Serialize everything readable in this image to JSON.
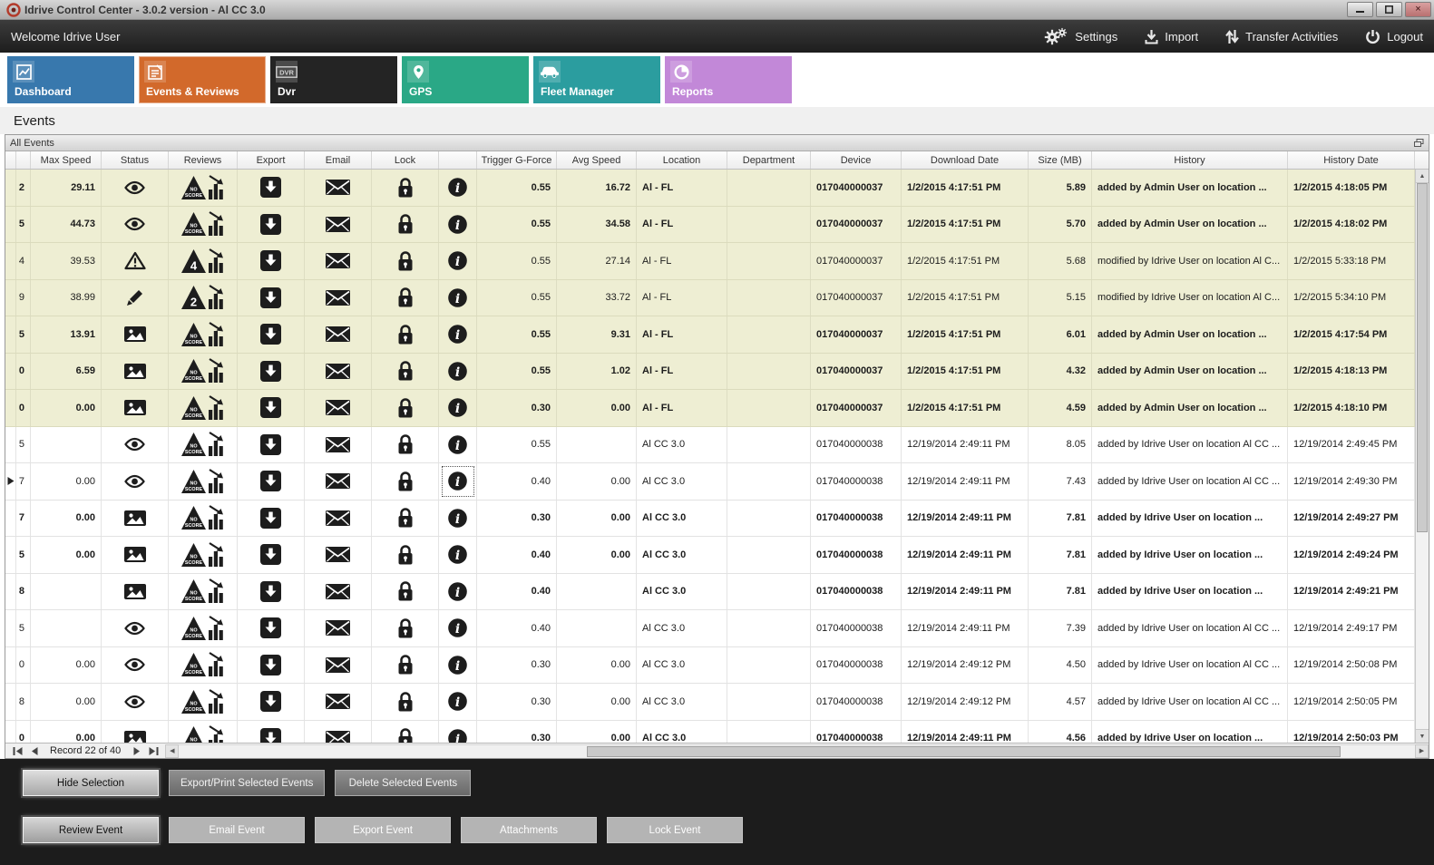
{
  "window": {
    "title": "Idrive Control Center - 3.0.2 version - Al CC 3.0"
  },
  "topbar": {
    "welcome": "Welcome Idrive User",
    "actions": [
      {
        "id": "settings",
        "label": "Settings"
      },
      {
        "id": "import",
        "label": "Import"
      },
      {
        "id": "transfer",
        "label": "Transfer Activities"
      },
      {
        "id": "logout",
        "label": "Logout"
      }
    ]
  },
  "tabs": [
    {
      "id": "dashboard",
      "label": "Dashboard",
      "color": "#3878ad",
      "active": false
    },
    {
      "id": "events",
      "label": "Events & Reviews",
      "color": "#d2692b",
      "active": true
    },
    {
      "id": "dvr",
      "label": "Dvr",
      "color": "#242424",
      "active": false,
      "icon_text": "DVR"
    },
    {
      "id": "gps",
      "label": "GPS",
      "color": "#2aa886",
      "active": false
    },
    {
      "id": "fleet",
      "label": "Fleet Manager",
      "color": "#2b9d9f",
      "active": false
    },
    {
      "id": "reports",
      "label": "Reports",
      "color": "#c288d8",
      "active": false
    }
  ],
  "page_title": "Events",
  "panel": {
    "title": "All Events"
  },
  "table": {
    "headers": [
      "",
      "",
      "Max Speed",
      "Status",
      "Reviews",
      "Export",
      "Email",
      "Lock",
      "",
      "Trigger G-Force",
      "Avg Speed",
      "Location",
      "Department",
      "Device",
      "Download Date",
      "Size (MB)",
      "History",
      "History Date"
    ],
    "rows": [
      {
        "clip": "2",
        "max_speed": "29.11",
        "status": "eye",
        "review": "NO SCORE",
        "trigger": "0.55",
        "avg_speed": "16.72",
        "location": "Al - FL",
        "department": "",
        "device": "017040000037",
        "download_date": "1/2/2015 4:17:51 PM",
        "size": "5.89",
        "history": "added by Admin User on location ...",
        "history_date": "1/2/2015 4:18:05 PM",
        "bold": true,
        "beige": true,
        "selected": false
      },
      {
        "clip": "5",
        "max_speed": "44.73",
        "status": "eye",
        "review": "NO SCORE",
        "trigger": "0.55",
        "avg_speed": "34.58",
        "location": "Al - FL",
        "department": "",
        "device": "017040000037",
        "download_date": "1/2/2015 4:17:51 PM",
        "size": "5.70",
        "history": "added by Admin User on location ...",
        "history_date": "1/2/2015 4:18:02 PM",
        "bold": true,
        "beige": true,
        "selected": false
      },
      {
        "clip": "4",
        "max_speed": "39.53",
        "status": "warning",
        "review": "4",
        "trigger": "0.55",
        "avg_speed": "27.14",
        "location": "Al - FL",
        "department": "",
        "device": "017040000037",
        "download_date": "1/2/2015 4:17:51 PM",
        "size": "5.68",
        "history": "modified by Idrive User on location Al C...",
        "history_date": "1/2/2015 5:33:18 PM",
        "bold": false,
        "beige": true,
        "selected": false
      },
      {
        "clip": "9",
        "max_speed": "38.99",
        "status": "pencil",
        "review": "2",
        "trigger": "0.55",
        "avg_speed": "33.72",
        "location": "Al - FL",
        "department": "",
        "device": "017040000037",
        "download_date": "1/2/2015 4:17:51 PM",
        "size": "5.15",
        "history": "modified by Idrive User on location Al C...",
        "history_date": "1/2/2015 5:34:10 PM",
        "bold": false,
        "beige": true,
        "selected": false
      },
      {
        "clip": "5",
        "max_speed": "13.91",
        "status": "image",
        "review": "NO SCORE",
        "trigger": "0.55",
        "avg_speed": "9.31",
        "location": "Al - FL",
        "department": "",
        "device": "017040000037",
        "download_date": "1/2/2015 4:17:51 PM",
        "size": "6.01",
        "history": "added by Admin User on location ...",
        "history_date": "1/2/2015 4:17:54 PM",
        "bold": true,
        "beige": true,
        "selected": false
      },
      {
        "clip": "0",
        "max_speed": "6.59",
        "status": "image",
        "review": "NO SCORE",
        "trigger": "0.55",
        "avg_speed": "1.02",
        "location": "Al - FL",
        "department": "",
        "device": "017040000037",
        "download_date": "1/2/2015 4:17:51 PM",
        "size": "4.32",
        "history": "added by Admin User on location ...",
        "history_date": "1/2/2015 4:18:13 PM",
        "bold": true,
        "beige": true,
        "selected": false
      },
      {
        "clip": "0",
        "max_speed": "0.00",
        "status": "image",
        "review": "NO SCORE",
        "trigger": "0.30",
        "avg_speed": "0.00",
        "location": "Al - FL",
        "department": "",
        "device": "017040000037",
        "download_date": "1/2/2015 4:17:51 PM",
        "size": "4.59",
        "history": "added by Admin User on location ...",
        "history_date": "1/2/2015 4:18:10 PM",
        "bold": true,
        "beige": true,
        "selected": false
      },
      {
        "clip": "5",
        "max_speed": "",
        "status": "eye",
        "review": "NO SCORE",
        "trigger": "0.55",
        "avg_speed": "",
        "location": "Al CC 3.0",
        "department": "",
        "device": "017040000038",
        "download_date": "12/19/2014 2:49:11 PM",
        "size": "8.05",
        "history": "added by Idrive User on location Al CC ...",
        "history_date": "12/19/2014 2:49:45 PM",
        "bold": false,
        "beige": false,
        "selected": false
      },
      {
        "clip": "7",
        "max_speed": "0.00",
        "status": "eye",
        "review": "NO SCORE",
        "trigger": "0.40",
        "avg_speed": "0.00",
        "location": "Al CC 3.0",
        "department": "",
        "device": "017040000038",
        "download_date": "12/19/2014 2:49:11 PM",
        "size": "7.43",
        "history": "added by Idrive User on location Al CC ...",
        "history_date": "12/19/2014 2:49:30 PM",
        "bold": false,
        "beige": false,
        "selected": true
      },
      {
        "clip": "7",
        "max_speed": "0.00",
        "status": "image",
        "review": "NO SCORE",
        "trigger": "0.30",
        "avg_speed": "0.00",
        "location": "Al CC 3.0",
        "department": "",
        "device": "017040000038",
        "download_date": "12/19/2014 2:49:11 PM",
        "size": "7.81",
        "history": "added by Idrive User on location ...",
        "history_date": "12/19/2014 2:49:27 PM",
        "bold": true,
        "beige": false,
        "selected": false
      },
      {
        "clip": "5",
        "max_speed": "0.00",
        "status": "image",
        "review": "NO SCORE",
        "trigger": "0.40",
        "avg_speed": "0.00",
        "location": "Al CC 3.0",
        "department": "",
        "device": "017040000038",
        "download_date": "12/19/2014 2:49:11 PM",
        "size": "7.81",
        "history": "added by Idrive User on location ...",
        "history_date": "12/19/2014 2:49:24 PM",
        "bold": true,
        "beige": false,
        "selected": false
      },
      {
        "clip": "8",
        "max_speed": "",
        "status": "image",
        "review": "NO SCORE",
        "trigger": "0.40",
        "avg_speed": "",
        "location": "Al CC 3.0",
        "department": "",
        "device": "017040000038",
        "download_date": "12/19/2014 2:49:11 PM",
        "size": "7.81",
        "history": "added by Idrive User on location ...",
        "history_date": "12/19/2014 2:49:21 PM",
        "bold": true,
        "beige": false,
        "selected": false
      },
      {
        "clip": "5",
        "max_speed": "",
        "status": "eye",
        "review": "NO SCORE",
        "trigger": "0.40",
        "avg_speed": "",
        "location": "Al CC 3.0",
        "department": "",
        "device": "017040000038",
        "download_date": "12/19/2014 2:49:11 PM",
        "size": "7.39",
        "history": "added by Idrive User on location Al CC ...",
        "history_date": "12/19/2014 2:49:17 PM",
        "bold": false,
        "beige": false,
        "selected": false
      },
      {
        "clip": "0",
        "max_speed": "0.00",
        "status": "eye",
        "review": "NO SCORE",
        "trigger": "0.30",
        "avg_speed": "0.00",
        "location": "Al CC 3.0",
        "department": "",
        "device": "017040000038",
        "download_date": "12/19/2014 2:49:12 PM",
        "size": "4.50",
        "history": "added by Idrive User on location Al CC ...",
        "history_date": "12/19/2014 2:50:08 PM",
        "bold": false,
        "beige": false,
        "selected": false
      },
      {
        "clip": "8",
        "max_speed": "0.00",
        "status": "eye",
        "review": "NO SCORE",
        "trigger": "0.30",
        "avg_speed": "0.00",
        "location": "Al CC 3.0",
        "department": "",
        "device": "017040000038",
        "download_date": "12/19/2014 2:49:12 PM",
        "size": "4.57",
        "history": "added by Idrive User on location Al CC ...",
        "history_date": "12/19/2014 2:50:05 PM",
        "bold": false,
        "beige": false,
        "selected": false
      },
      {
        "clip": "0",
        "max_speed": "0.00",
        "status": "image",
        "review": "NO SCORE",
        "trigger": "0.30",
        "avg_speed": "0.00",
        "location": "Al CC 3.0",
        "department": "",
        "device": "017040000038",
        "download_date": "12/19/2014 2:49:11 PM",
        "size": "4.56",
        "history": "added by Idrive User on location ...",
        "history_date": "12/19/2014 2:50:03 PM",
        "bold": true,
        "beige": false,
        "selected": false
      }
    ]
  },
  "pager": {
    "label": "Record 22 of 40"
  },
  "toolbar_top": [
    {
      "label": "Hide Selection",
      "focused": true
    },
    {
      "label": "Export/Print Selected Events",
      "focused": false
    },
    {
      "label": "Delete Selected  Events",
      "focused": false
    }
  ],
  "toolbar_bottom": [
    {
      "label": "Review Event",
      "focused": true
    },
    {
      "label": "Email Event",
      "focused": false
    },
    {
      "label": "Export Event",
      "focused": false
    },
    {
      "label": "Attachments",
      "focused": false
    },
    {
      "label": "Lock Event",
      "focused": false
    }
  ]
}
